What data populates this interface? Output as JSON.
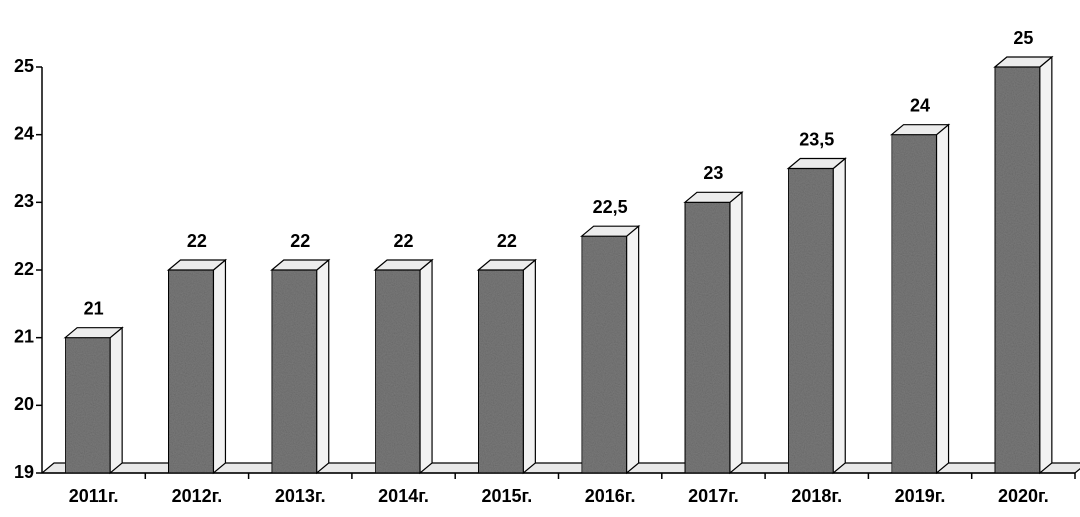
{
  "chart_data": {
    "type": "bar",
    "categories": [
      "2011г.",
      "2012г.",
      "2013г.",
      "2014г.",
      "2015г.",
      "2016г.",
      "2017г.",
      "2018г.",
      "2019г.",
      "2020г."
    ],
    "values": [
      21,
      22,
      22,
      22,
      22,
      22.5,
      23,
      23.5,
      24,
      25
    ],
    "value_labels": [
      "21",
      "22",
      "22",
      "22",
      "22",
      "22,5",
      "23",
      "23,5",
      "24",
      "25"
    ],
    "color": "#7a7a7a",
    "ylim": [
      19,
      25
    ],
    "yticks": [
      19,
      20,
      21,
      22,
      23,
      24,
      25
    ],
    "grid": false
  }
}
